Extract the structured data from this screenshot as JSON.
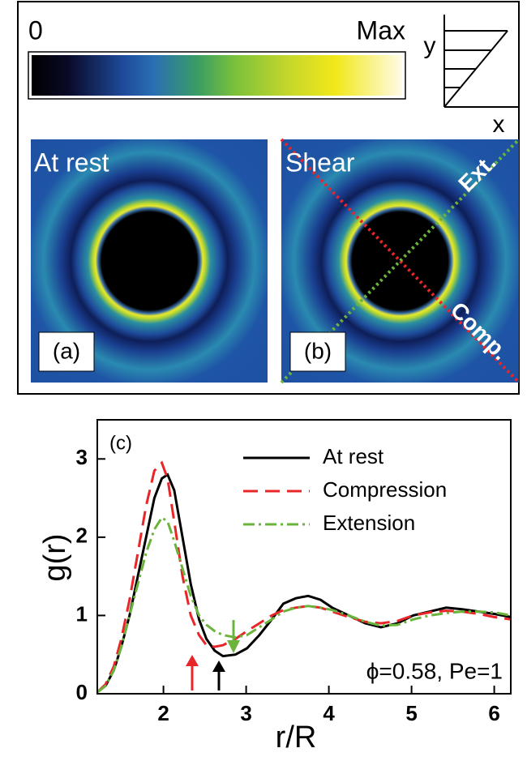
{
  "colorbar": {
    "min_label": "0",
    "max_label": "Max"
  },
  "shear_diagram": {
    "y_label": "y",
    "x_label": "x"
  },
  "images": [
    {
      "title": "At rest",
      "label": "(a)"
    },
    {
      "title": "Shear",
      "label": "(b)",
      "extension_label": "Ext.",
      "compression_label": "Comp."
    }
  ],
  "chart_data": {
    "type": "line",
    "panel_label": "(c)",
    "x_label": "r/R",
    "y_label": "g(r)",
    "annotation": "ϕ=0.58, Pe=1",
    "x": [
      1.2,
      1.3,
      1.4,
      1.49,
      1.59,
      1.69,
      1.79,
      1.89,
      1.98,
      2.05,
      2.13,
      2.23,
      2.33,
      2.43,
      2.52,
      2.62,
      2.72,
      2.87,
      3.01,
      3.16,
      3.31,
      3.45,
      3.6,
      3.75,
      3.9,
      4.04,
      4.24,
      4.44,
      4.63,
      4.83,
      5.02,
      5.22,
      5.42,
      5.61,
      5.81,
      6.0,
      6.2
    ],
    "series": [
      {
        "name": "At rest",
        "color": "#000000",
        "dash": "none",
        "values": [
          0.02,
          0.1,
          0.3,
          0.6,
          1.0,
          1.5,
          2.0,
          2.5,
          2.75,
          2.8,
          2.6,
          2.0,
          1.4,
          0.95,
          0.7,
          0.55,
          0.48,
          0.5,
          0.58,
          0.75,
          0.95,
          1.15,
          1.22,
          1.25,
          1.2,
          1.1,
          1.0,
          0.9,
          0.85,
          0.9,
          1.0,
          1.05,
          1.1,
          1.08,
          1.05,
          1.02,
          0.98
        ]
      },
      {
        "name": "Compression",
        "color": "#e8262a",
        "dash": "18 9",
        "values": [
          0.02,
          0.12,
          0.35,
          0.7,
          1.2,
          1.8,
          2.4,
          2.85,
          2.95,
          2.75,
          2.2,
          1.5,
          1.0,
          0.75,
          0.62,
          0.6,
          0.62,
          0.7,
          0.8,
          0.9,
          1.0,
          1.07,
          1.1,
          1.12,
          1.1,
          1.05,
          0.98,
          0.92,
          0.9,
          0.93,
          1.0,
          1.04,
          1.06,
          1.05,
          1.02,
          0.98,
          0.95
        ]
      },
      {
        "name": "Extension",
        "color": "#6ab43c",
        "dash": "14 5 3 5",
        "values": [
          0.02,
          0.1,
          0.3,
          0.6,
          1.0,
          1.4,
          1.8,
          2.1,
          2.25,
          2.2,
          1.95,
          1.6,
          1.25,
          1.0,
          0.88,
          0.8,
          0.75,
          0.72,
          0.75,
          0.85,
          0.95,
          1.05,
          1.1,
          1.12,
          1.1,
          1.07,
          1.0,
          0.92,
          0.87,
          0.88,
          0.95,
          1.0,
          1.03,
          1.05,
          1.05,
          1.04,
          1.0
        ]
      }
    ],
    "xlim": [
      1.2,
      6.2
    ],
    "ylim": [
      0,
      3.5
    ],
    "xticks": [
      2,
      3,
      4,
      5,
      6
    ],
    "yticks": [
      0,
      1,
      2,
      3
    ]
  }
}
